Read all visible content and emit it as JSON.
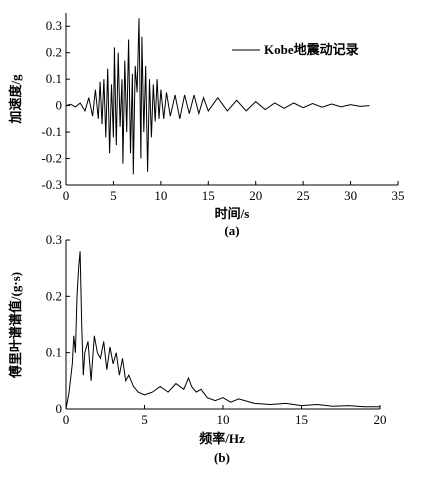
{
  "chart_data": [
    {
      "panel": "(a)",
      "type": "line",
      "xlabel": "时间/s",
      "ylabel": "加速度/g",
      "xlim": [
        0,
        35
      ],
      "ylim": [
        -0.3,
        0.35
      ],
      "xticks": [
        "0",
        "5",
        "10",
        "15",
        "20",
        "25",
        "30",
        "35"
      ],
      "yticks": [
        "-0.3",
        "-0.2",
        "-0.1",
        "0",
        "0.1",
        "0.2",
        "0.3"
      ],
      "legend": "Kobe地震动记录",
      "legend_position": "top-right",
      "grid": false,
      "series": [
        {
          "name": "Kobe地震动记录",
          "color": "#000000",
          "x": [
            0,
            0.5,
            1,
            1.5,
            2,
            2.4,
            2.8,
            3.1,
            3.4,
            3.6,
            3.8,
            4.0,
            4.2,
            4.4,
            4.6,
            4.8,
            5.0,
            5.1,
            5.3,
            5.5,
            5.7,
            5.9,
            6.0,
            6.2,
            6.4,
            6.6,
            6.8,
            7.0,
            7.1,
            7.3,
            7.5,
            7.7,
            7.9,
            8.0,
            8.2,
            8.4,
            8.6,
            8.8,
            9.0,
            9.2,
            9.4,
            9.6,
            9.8,
            10.0,
            10.3,
            10.6,
            11.0,
            11.5,
            12.0,
            12.5,
            13.0,
            13.5,
            14.0,
            14.5,
            15.0,
            16.0,
            17.0,
            18.0,
            19.0,
            20.0,
            21.0,
            22.0,
            23.0,
            24.0,
            25.0,
            26.0,
            27.0,
            28.0,
            29.0,
            30.0,
            31.0,
            32.0
          ],
          "values": [
            0,
            0.005,
            -0.005,
            0.01,
            -0.02,
            0.03,
            -0.04,
            0.06,
            -0.05,
            0.09,
            -0.07,
            0.1,
            -0.12,
            0.14,
            -0.18,
            0.08,
            -0.12,
            0.22,
            -0.15,
            0.2,
            -0.08,
            0.1,
            -0.22,
            0.17,
            -0.1,
            0.25,
            -0.18,
            0.12,
            -0.26,
            0.15,
            0.05,
            0.33,
            -0.2,
            0.26,
            -0.1,
            0.15,
            -0.25,
            0.1,
            -0.12,
            0.08,
            -0.06,
            0.1,
            -0.05,
            0.06,
            -0.05,
            0.05,
            -0.04,
            0.04,
            -0.05,
            0.04,
            -0.03,
            0.04,
            -0.03,
            0.03,
            -0.02,
            0.03,
            -0.02,
            0.02,
            -0.02,
            0.015,
            -0.015,
            0.01,
            -0.01,
            0.01,
            -0.008,
            0.008,
            -0.006,
            0.006,
            -0.005,
            0.004,
            -0.003,
            0
          ]
        }
      ]
    },
    {
      "panel": "(b)",
      "type": "line",
      "xlabel": "频率/Hz",
      "ylabel": "傅里叶谱谱值/(g·s)",
      "xlim": [
        0,
        20
      ],
      "ylim": [
        0,
        0.3
      ],
      "xticks": [
        "0",
        "5",
        "10",
        "15",
        "20"
      ],
      "yticks": [
        "0",
        "0.1",
        "0.2",
        "0.3"
      ],
      "grid": false,
      "series": [
        {
          "color": "#000000",
          "x": [
            0,
            0.2,
            0.4,
            0.5,
            0.6,
            0.7,
            0.8,
            0.9,
            1.0,
            1.1,
            1.2,
            1.4,
            1.6,
            1.8,
            2.0,
            2.2,
            2.4,
            2.6,
            2.8,
            3.0,
            3.2,
            3.4,
            3.6,
            3.8,
            4.0,
            4.3,
            4.6,
            5.0,
            5.5,
            6.0,
            6.5,
            7.0,
            7.5,
            7.8,
            8.0,
            8.3,
            8.6,
            9.0,
            9.5,
            10.0,
            10.5,
            11.0,
            12.0,
            13.0,
            14.0,
            15.0,
            16.0,
            17.0,
            18.0,
            19.0,
            20.0
          ],
          "values": [
            0.0,
            0.03,
            0.08,
            0.13,
            0.1,
            0.2,
            0.25,
            0.28,
            0.15,
            0.06,
            0.1,
            0.12,
            0.05,
            0.13,
            0.1,
            0.09,
            0.12,
            0.07,
            0.11,
            0.08,
            0.1,
            0.06,
            0.09,
            0.05,
            0.06,
            0.04,
            0.03,
            0.025,
            0.03,
            0.04,
            0.03,
            0.045,
            0.035,
            0.055,
            0.04,
            0.03,
            0.035,
            0.02,
            0.015,
            0.02,
            0.012,
            0.018,
            0.01,
            0.008,
            0.01,
            0.006,
            0.008,
            0.005,
            0.006,
            0.004,
            0.004
          ]
        }
      ]
    }
  ]
}
